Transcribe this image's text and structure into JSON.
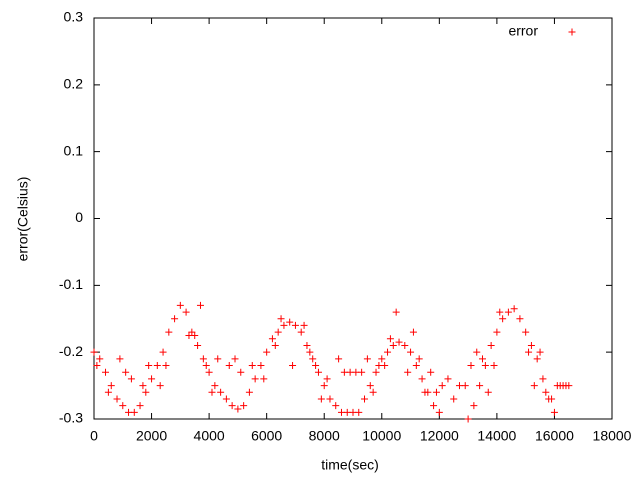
{
  "chart_data": {
    "type": "scatter",
    "xlabel": "time(sec)",
    "ylabel": "error(Celsius)",
    "x": [
      0,
      200,
      400,
      600,
      800,
      1000,
      1200,
      1400,
      1600,
      1800,
      2000,
      2200,
      2400,
      2600,
      2800,
      3000,
      3200,
      3400,
      3600,
      3800,
      4000,
      4200,
      4400,
      4600,
      4800,
      5000,
      5200,
      5400,
      5600,
      5800,
      6000,
      6200,
      6400,
      6600,
      6800,
      7000,
      7200,
      7400,
      7600,
      7800,
      8000,
      8200,
      8400,
      8600,
      8800,
      9000,
      9200,
      9400,
      9600,
      9800,
      10000,
      10200,
      10400,
      10600,
      10800,
      11000,
      11200,
      11400,
      11600,
      11800,
      12000,
      13000,
      13200,
      13400,
      13600,
      13800,
      14000,
      14200,
      14400,
      14600,
      14800,
      15000,
      15200,
      15400,
      15600,
      15800,
      16000,
      16200,
      16400,
      100,
      500,
      900,
      1100,
      1300,
      1700,
      1900,
      2300,
      2500,
      3300,
      3500,
      3700,
      3900,
      4100,
      4300,
      4700,
      4900,
      5100,
      5500,
      5900,
      6300,
      6500,
      6900,
      7300,
      7500,
      7700,
      7900,
      8100,
      8500,
      8700,
      8900,
      9100,
      9300,
      9500,
      9700,
      9900,
      10100,
      10300,
      10500,
      10900,
      11100,
      11300,
      11500,
      11700,
      11900,
      12100,
      12300,
      12500,
      12700,
      12900,
      13100,
      13300,
      13500,
      13700,
      13900,
      14100,
      15100,
      15300,
      15500,
      15700,
      15900,
      16100,
      16300,
      16500
    ],
    "series": [
      {
        "name": "error",
        "color": "#ff0000",
        "values": [
          -0.2,
          -0.21,
          -0.23,
          -0.25,
          -0.27,
          -0.28,
          -0.29,
          -0.29,
          -0.28,
          -0.26,
          -0.24,
          -0.22,
          -0.2,
          -0.17,
          -0.15,
          -0.13,
          -0.14,
          -0.17,
          -0.19,
          -0.21,
          -0.23,
          -0.25,
          -0.26,
          -0.27,
          -0.28,
          -0.285,
          -0.28,
          -0.26,
          -0.24,
          -0.22,
          -0.2,
          -0.18,
          -0.17,
          -0.16,
          -0.155,
          -0.16,
          -0.17,
          -0.19,
          -0.21,
          -0.23,
          -0.25,
          -0.27,
          -0.28,
          -0.29,
          -0.29,
          -0.29,
          -0.29,
          -0.27,
          -0.25,
          -0.23,
          -0.21,
          -0.2,
          -0.19,
          -0.185,
          -0.19,
          -0.2,
          -0.22,
          -0.24,
          -0.26,
          -0.28,
          -0.29,
          -0.3,
          -0.28,
          -0.25,
          -0.22,
          -0.19,
          -0.17,
          -0.15,
          -0.14,
          -0.135,
          -0.15,
          -0.17,
          -0.19,
          -0.21,
          -0.24,
          -0.27,
          -0.29,
          -0.25,
          -0.25,
          -0.22,
          -0.26,
          -0.21,
          -0.23,
          -0.24,
          -0.25,
          -0.22,
          -0.25,
          -0.22,
          -0.175,
          -0.175,
          -0.13,
          -0.22,
          -0.26,
          -0.21,
          -0.22,
          -0.21,
          -0.23,
          -0.22,
          -0.24,
          -0.19,
          -0.15,
          -0.22,
          -0.16,
          -0.2,
          -0.22,
          -0.27,
          -0.24,
          -0.21,
          -0.23,
          -0.23,
          -0.23,
          -0.23,
          -0.21,
          -0.26,
          -0.22,
          -0.22,
          -0.18,
          -0.14,
          -0.23,
          -0.17,
          -0.21,
          -0.26,
          -0.23,
          -0.26,
          -0.25,
          -0.24,
          -0.27,
          -0.25,
          -0.25,
          -0.22,
          -0.2,
          -0.21,
          -0.26,
          -0.22,
          -0.14,
          -0.2,
          -0.25,
          -0.2,
          -0.26,
          -0.27,
          -0.25,
          -0.25,
          -0.25
        ]
      }
    ],
    "xlim": [
      0,
      18000
    ],
    "ylim": [
      -0.3,
      0.3
    ],
    "xticks": [
      0,
      2000,
      4000,
      6000,
      8000,
      10000,
      12000,
      14000,
      16000,
      18000
    ],
    "yticks": [
      0.3,
      0.2,
      0.1,
      0,
      -0.1,
      -0.2,
      -0.3
    ],
    "legend": "upper right"
  }
}
